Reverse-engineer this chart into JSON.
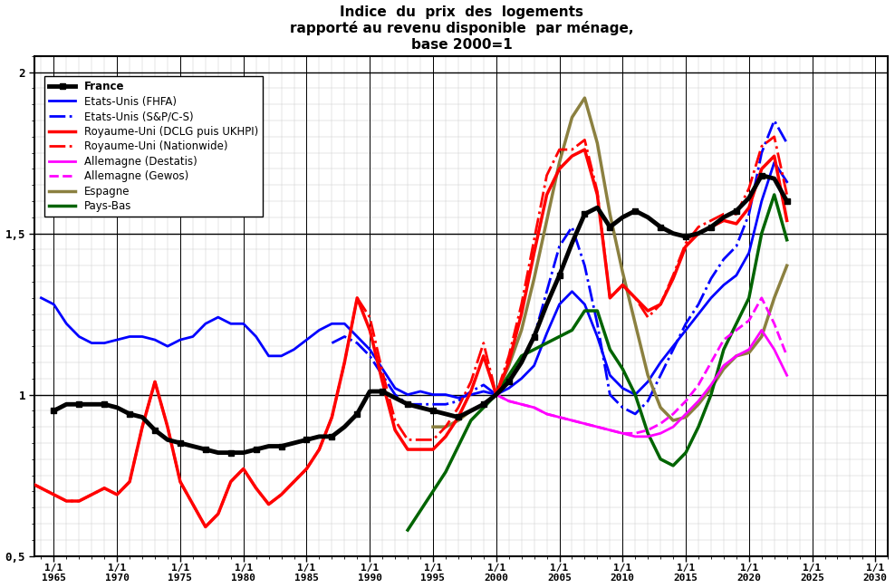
{
  "title": "Indice  du  prix  des  logements\nrapporté au revenu disponible  par ménage,\nbase 2000=1",
  "xlim": [
    1963.5,
    2031
  ],
  "ylim": [
    0.5,
    2.05
  ],
  "yticks": [
    0.5,
    1.0,
    1.5,
    2.0
  ],
  "ytick_labels": [
    "0,5",
    "1",
    "1,5",
    "2"
  ],
  "xticks": [
    1965,
    1970,
    1975,
    1980,
    1985,
    1990,
    1995,
    2000,
    2005,
    2010,
    2015,
    2020,
    2025,
    2030
  ],
  "hlines": [
    0.5,
    1.0,
    1.5,
    2.0
  ],
  "vlines": [
    1965,
    1970,
    1975,
    1980,
    1985,
    1990,
    1995,
    2000,
    2005,
    2010,
    2015,
    2020,
    2025,
    2030
  ],
  "series": {
    "france": {
      "label": "France",
      "color": "#000000",
      "lw": 3.5,
      "ls": "-",
      "marker": "s",
      "ms": 4,
      "zorder": 10,
      "x": [
        1965,
        1966,
        1967,
        1968,
        1969,
        1970,
        1971,
        1972,
        1973,
        1974,
        1975,
        1976,
        1977,
        1978,
        1979,
        1980,
        1981,
        1982,
        1983,
        1984,
        1985,
        1986,
        1987,
        1988,
        1989,
        1990,
        1991,
        1992,
        1993,
        1994,
        1995,
        1996,
        1997,
        1998,
        1999,
        2000,
        2001,
        2002,
        2003,
        2004,
        2005,
        2006,
        2007,
        2008,
        2009,
        2010,
        2011,
        2012,
        2013,
        2014,
        2015,
        2016,
        2017,
        2018,
        2019,
        2020,
        2021,
        2022,
        2023
      ],
      "y": [
        0.95,
        0.97,
        0.97,
        0.97,
        0.97,
        0.96,
        0.94,
        0.93,
        0.89,
        0.86,
        0.85,
        0.84,
        0.83,
        0.82,
        0.82,
        0.82,
        0.83,
        0.84,
        0.84,
        0.85,
        0.86,
        0.87,
        0.87,
        0.9,
        0.94,
        1.01,
        1.01,
        0.99,
        0.97,
        0.96,
        0.95,
        0.94,
        0.93,
        0.95,
        0.97,
        1.0,
        1.04,
        1.1,
        1.18,
        1.28,
        1.37,
        1.47,
        1.56,
        1.58,
        1.52,
        1.55,
        1.57,
        1.55,
        1.52,
        1.5,
        1.49,
        1.5,
        1.52,
        1.55,
        1.57,
        1.61,
        1.68,
        1.67,
        1.6
      ]
    },
    "usa_fhfa": {
      "label": "Etats-Unis (FHFA)",
      "color": "#0000FF",
      "lw": 2.0,
      "ls": "-",
      "marker": null,
      "ms": 0,
      "zorder": 5,
      "x": [
        1964,
        1965,
        1966,
        1967,
        1968,
        1969,
        1970,
        1971,
        1972,
        1973,
        1974,
        1975,
        1976,
        1977,
        1978,
        1979,
        1980,
        1981,
        1982,
        1983,
        1984,
        1985,
        1986,
        1987,
        1988,
        1989,
        1990,
        1991,
        1992,
        1993,
        1994,
        1995,
        1996,
        1997,
        1998,
        1999,
        2000,
        2001,
        2002,
        2003,
        2004,
        2005,
        2006,
        2007,
        2008,
        2009,
        2010,
        2011,
        2012,
        2013,
        2014,
        2015,
        2016,
        2017,
        2018,
        2019,
        2020,
        2021,
        2022,
        2023
      ],
      "y": [
        1.3,
        1.28,
        1.22,
        1.18,
        1.16,
        1.16,
        1.17,
        1.18,
        1.18,
        1.17,
        1.15,
        1.17,
        1.18,
        1.22,
        1.24,
        1.22,
        1.22,
        1.18,
        1.12,
        1.12,
        1.14,
        1.17,
        1.2,
        1.22,
        1.22,
        1.18,
        1.14,
        1.08,
        1.02,
        1.0,
        1.01,
        1.0,
        1.0,
        0.99,
        1.0,
        1.01,
        1.0,
        1.02,
        1.05,
        1.09,
        1.19,
        1.28,
        1.32,
        1.28,
        1.18,
        1.06,
        1.02,
        1.0,
        1.04,
        1.1,
        1.15,
        1.2,
        1.25,
        1.3,
        1.34,
        1.37,
        1.44,
        1.6,
        1.72,
        1.66
      ]
    },
    "usa_sp": {
      "label": "Etats-Unis (S&P/C-S)",
      "color": "#0000FF",
      "lw": 2.0,
      "ls": "-.",
      "marker": null,
      "ms": 0,
      "zorder": 5,
      "x": [
        1987,
        1988,
        1989,
        1990,
        1991,
        1992,
        1993,
        1994,
        1995,
        1996,
        1997,
        1998,
        1999,
        2000,
        2001,
        2002,
        2003,
        2004,
        2005,
        2006,
        2007,
        2008,
        2009,
        2010,
        2011,
        2012,
        2013,
        2014,
        2015,
        2016,
        2017,
        2018,
        2019,
        2020,
        2021,
        2022,
        2023
      ],
      "y": [
        1.16,
        1.18,
        1.16,
        1.12,
        1.06,
        1.0,
        0.97,
        0.97,
        0.97,
        0.97,
        0.98,
        1.01,
        1.03,
        1.0,
        1.04,
        1.1,
        1.18,
        1.32,
        1.46,
        1.52,
        1.4,
        1.22,
        1.0,
        0.96,
        0.94,
        0.98,
        1.06,
        1.14,
        1.22,
        1.28,
        1.36,
        1.42,
        1.46,
        1.56,
        1.75,
        1.85,
        1.78
      ]
    },
    "uk_dclg": {
      "label": "Royaume-Uni (DCLG puis UKHPI)",
      "color": "#FF0000",
      "lw": 2.5,
      "ls": "-",
      "marker": null,
      "ms": 0,
      "zorder": 6,
      "x": [
        1963,
        1964,
        1965,
        1966,
        1967,
        1968,
        1969,
        1970,
        1971,
        1972,
        1973,
        1974,
        1975,
        1976,
        1977,
        1978,
        1979,
        1980,
        1981,
        1982,
        1983,
        1984,
        1985,
        1986,
        1987,
        1988,
        1989,
        1990,
        1991,
        1992,
        1993,
        1994,
        1995,
        1996,
        1997,
        1998,
        1999,
        2000,
        2001,
        2002,
        2003,
        2004,
        2005,
        2006,
        2007,
        2008,
        2009,
        2010,
        2011,
        2012,
        2013,
        2014,
        2015,
        2016,
        2017,
        2018,
        2019,
        2020,
        2021,
        2022,
        2023
      ],
      "y": [
        0.73,
        0.71,
        0.69,
        0.67,
        0.67,
        0.69,
        0.71,
        0.69,
        0.73,
        0.9,
        1.04,
        0.9,
        0.73,
        0.66,
        0.59,
        0.63,
        0.73,
        0.77,
        0.71,
        0.66,
        0.69,
        0.73,
        0.77,
        0.83,
        0.93,
        1.1,
        1.3,
        1.2,
        1.04,
        0.89,
        0.83,
        0.83,
        0.83,
        0.87,
        0.93,
        1.01,
        1.12,
        1.0,
        1.1,
        1.25,
        1.44,
        1.62,
        1.7,
        1.74,
        1.76,
        1.62,
        1.3,
        1.34,
        1.3,
        1.26,
        1.28,
        1.36,
        1.46,
        1.5,
        1.52,
        1.54,
        1.53,
        1.58,
        1.7,
        1.74,
        1.54
      ]
    },
    "uk_nationwide": {
      "label": "Royaume-Uni (Nationwide)",
      "color": "#FF0000",
      "lw": 2.0,
      "ls": "-.",
      "marker": null,
      "ms": 0,
      "zorder": 6,
      "x": [
        1963,
        1964,
        1965,
        1966,
        1967,
        1968,
        1969,
        1970,
        1971,
        1972,
        1973,
        1974,
        1975,
        1976,
        1977,
        1978,
        1979,
        1980,
        1981,
        1982,
        1983,
        1984,
        1985,
        1986,
        1987,
        1988,
        1989,
        1990,
        1991,
        1992,
        1993,
        1994,
        1995,
        1996,
        1997,
        1998,
        1999,
        2000,
        2001,
        2002,
        2003,
        2004,
        2005,
        2006,
        2007,
        2008,
        2009,
        2010,
        2011,
        2012,
        2013,
        2014,
        2015,
        2016,
        2017,
        2018,
        2019,
        2020,
        2021,
        2022,
        2023
      ],
      "y": [
        0.73,
        0.71,
        0.69,
        0.67,
        0.67,
        0.69,
        0.71,
        0.69,
        0.73,
        0.9,
        1.04,
        0.9,
        0.73,
        0.66,
        0.59,
        0.63,
        0.73,
        0.77,
        0.71,
        0.66,
        0.69,
        0.73,
        0.77,
        0.83,
        0.93,
        1.1,
        1.3,
        1.24,
        1.07,
        0.92,
        0.86,
        0.86,
        0.86,
        0.9,
        0.96,
        1.04,
        1.16,
        1.0,
        1.12,
        1.28,
        1.48,
        1.68,
        1.76,
        1.76,
        1.79,
        1.63,
        1.3,
        1.34,
        1.3,
        1.24,
        1.28,
        1.37,
        1.47,
        1.52,
        1.54,
        1.56,
        1.56,
        1.64,
        1.77,
        1.8,
        1.62
      ]
    },
    "de_destatis": {
      "label": "Allemagne (Destatis)",
      "color": "#FF00FF",
      "lw": 2.0,
      "ls": "-",
      "marker": null,
      "ms": 0,
      "zorder": 5,
      "x": [
        2000,
        2001,
        2002,
        2003,
        2004,
        2005,
        2006,
        2007,
        2008,
        2009,
        2010,
        2011,
        2012,
        2013,
        2014,
        2015,
        2016,
        2017,
        2018,
        2019,
        2020,
        2021,
        2022,
        2023
      ],
      "y": [
        1.0,
        0.98,
        0.97,
        0.96,
        0.94,
        0.93,
        0.92,
        0.91,
        0.9,
        0.89,
        0.88,
        0.87,
        0.87,
        0.88,
        0.9,
        0.94,
        0.98,
        1.03,
        1.09,
        1.12,
        1.14,
        1.2,
        1.14,
        1.06
      ]
    },
    "de_gewos": {
      "label": "Allemagne (Gewos)",
      "color": "#FF00FF",
      "lw": 2.0,
      "ls": "--",
      "marker": null,
      "ms": 0,
      "zorder": 5,
      "x": [
        2000,
        2001,
        2002,
        2003,
        2004,
        2005,
        2006,
        2007,
        2008,
        2009,
        2010,
        2011,
        2012,
        2013,
        2014,
        2015,
        2016,
        2017,
        2018,
        2019,
        2020,
        2021,
        2022,
        2023
      ],
      "y": [
        1.0,
        0.98,
        0.97,
        0.96,
        0.94,
        0.93,
        0.92,
        0.91,
        0.9,
        0.89,
        0.88,
        0.88,
        0.89,
        0.91,
        0.94,
        0.98,
        1.03,
        1.1,
        1.17,
        1.2,
        1.23,
        1.3,
        1.22,
        1.12
      ]
    },
    "espagne": {
      "label": "Espagne",
      "color": "#8B8040",
      "lw": 2.5,
      "ls": "-",
      "marker": null,
      "ms": 0,
      "zorder": 5,
      "x": [
        1995,
        1996,
        1997,
        1998,
        1999,
        2000,
        2001,
        2002,
        2003,
        2004,
        2005,
        2006,
        2007,
        2008,
        2009,
        2010,
        2011,
        2012,
        2013,
        2014,
        2015,
        2016,
        2017,
        2018,
        2019,
        2020,
        2021,
        2022,
        2023
      ],
      "y": [
        0.9,
        0.9,
        0.92,
        0.95,
        0.97,
        1.0,
        1.09,
        1.2,
        1.36,
        1.54,
        1.72,
        1.86,
        1.92,
        1.78,
        1.56,
        1.38,
        1.22,
        1.06,
        0.96,
        0.92,
        0.93,
        0.97,
        1.02,
        1.08,
        1.12,
        1.13,
        1.18,
        1.3,
        1.4
      ]
    },
    "pays_bas": {
      "label": "Pays-Bas",
      "color": "#006400",
      "lw": 2.5,
      "ls": "-",
      "marker": null,
      "ms": 0,
      "zorder": 5,
      "x": [
        1993,
        1994,
        1995,
        1996,
        1997,
        1998,
        1999,
        2000,
        2001,
        2002,
        2003,
        2004,
        2005,
        2006,
        2007,
        2008,
        2009,
        2010,
        2011,
        2012,
        2013,
        2014,
        2015,
        2016,
        2017,
        2018,
        2019,
        2020,
        2021,
        2022,
        2023
      ],
      "y": [
        0.58,
        0.64,
        0.7,
        0.76,
        0.84,
        0.92,
        0.96,
        1.0,
        1.06,
        1.12,
        1.14,
        1.16,
        1.18,
        1.2,
        1.26,
        1.26,
        1.14,
        1.08,
        1.0,
        0.88,
        0.8,
        0.78,
        0.82,
        0.9,
        1.0,
        1.14,
        1.22,
        1.3,
        1.5,
        1.62,
        1.48
      ]
    }
  }
}
